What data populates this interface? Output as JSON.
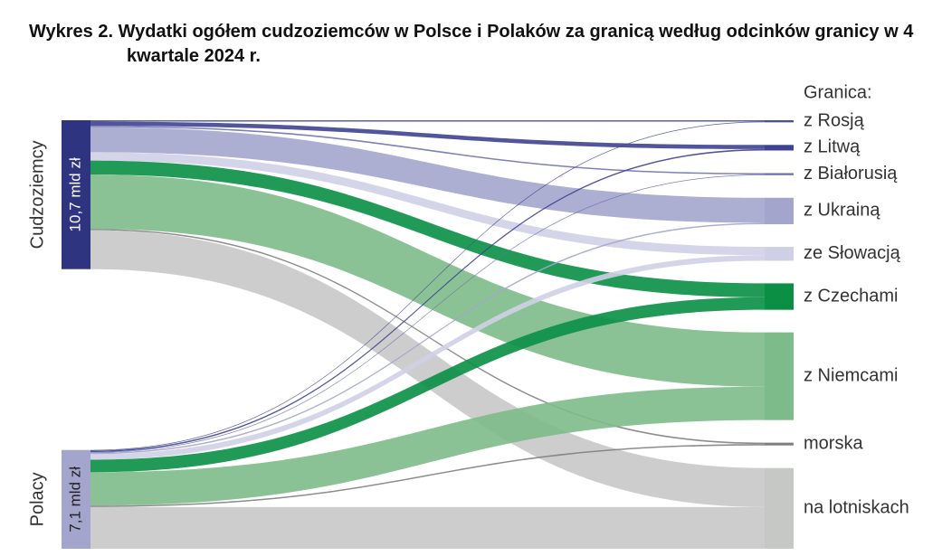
{
  "chart_data": {
    "type": "sankey",
    "title": "Wykres 2. Wydatki ogółem cudzoziemców w Polsce i Polaków za granicą według odcinków granicy w 4 kwartale 2024 r.",
    "legend_title": "Granica:",
    "categories": [
      "z Rosją",
      "z Litwą",
      "z Białorusią",
      "z Ukrainą",
      "ze Słowacją",
      "z Czechami",
      "z Niemcami",
      "morska",
      "na lotniskach"
    ],
    "category_colors": [
      "#4a4f93",
      "#3d4391",
      "#6e72ad",
      "#a3a5cd",
      "#cfd0e6",
      "#0a8f45",
      "#7dbb8a",
      "#808080",
      "#c6c8c6"
    ],
    "series": [
      {
        "name": "Cudzoziemcy",
        "label": "10,7 mld zł",
        "color": "#2e3480",
        "values": [
          0.1,
          0.3,
          0.1,
          1.8,
          0.6,
          1.0,
          3.9,
          0.1,
          2.8
        ]
      },
      {
        "name": "Polacy",
        "label": "7,1 mld zł",
        "color": "#a3a5cd",
        "values": [
          0.05,
          0.1,
          0.05,
          0.1,
          0.4,
          0.9,
          2.4,
          0.1,
          3.0
        ]
      }
    ]
  }
}
